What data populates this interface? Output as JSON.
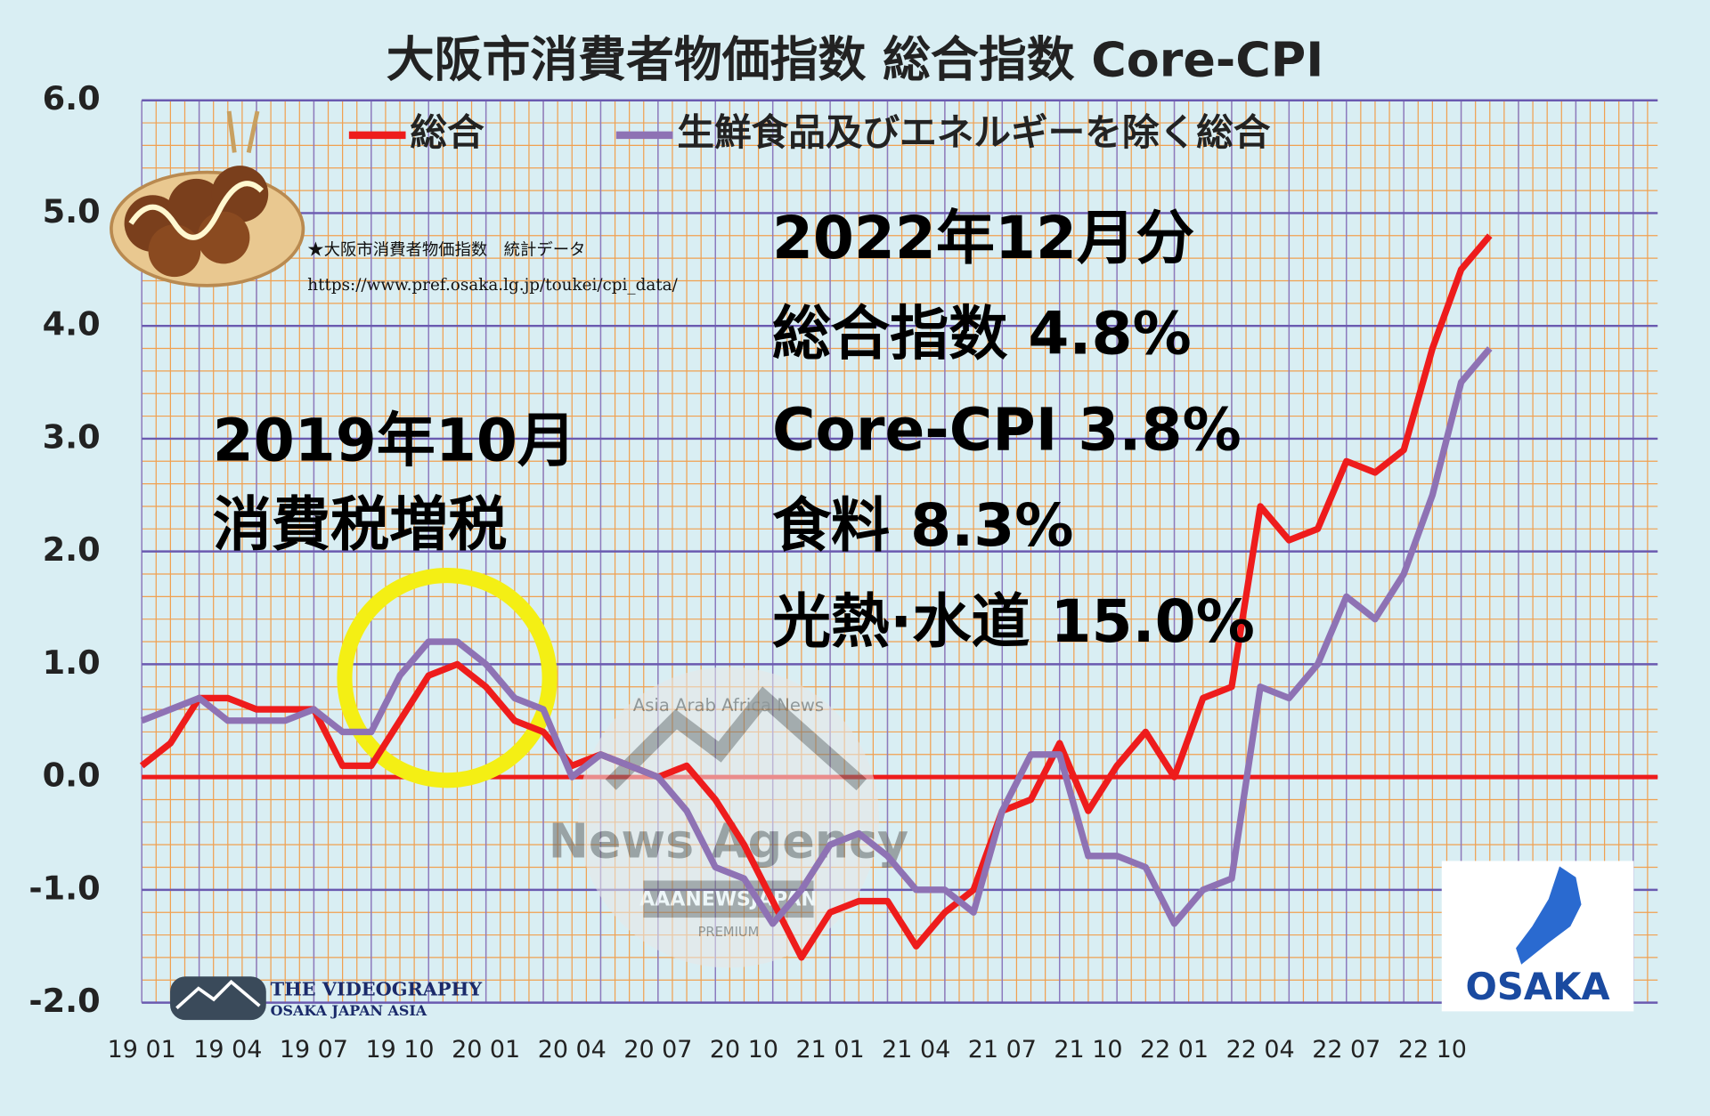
{
  "chart_data": {
    "type": "line",
    "title": "大阪市消費者物価指数 総合指数 Core-CPI",
    "source": "★大阪市消費者物価指数　統計データ",
    "source_url": "https://www.pref.osaka.lg.jp/toukei/cpi_data/",
    "annotations": [
      "2019年10月",
      "消費税増税",
      "2022年12月分",
      "総合指数 4.8%",
      "Core-CPI 3.8%",
      "食料 8.3%",
      "光熱·水道 15.0%"
    ],
    "categories": [
      "19 01",
      null,
      null,
      "19 04",
      null,
      null,
      "19 07",
      null,
      null,
      "19 10",
      null,
      null,
      "20 01",
      null,
      null,
      "20 04",
      null,
      null,
      "20 07",
      null,
      null,
      "20 10",
      null,
      null,
      "21 01",
      null,
      null,
      "21 04",
      null,
      null,
      "21 07",
      null,
      null,
      "21 10",
      null,
      null,
      "22 01",
      null,
      null,
      "22 04",
      null,
      null,
      "22 07",
      null,
      null,
      "22 10",
      null,
      null
    ],
    "series": [
      {
        "name": "総合",
        "color": "#ee1c1c",
        "values": [
          0.1,
          0.3,
          0.7,
          0.7,
          0.6,
          0.6,
          0.6,
          0.1,
          0.1,
          0.5,
          0.9,
          1.0,
          0.8,
          0.5,
          0.4,
          0.1,
          0.2,
          0.1,
          0.0,
          0.1,
          -0.2,
          -0.6,
          -1.1,
          -1.6,
          -1.2,
          -1.1,
          -1.1,
          -1.5,
          -1.2,
          -1.0,
          -0.3,
          -0.2,
          0.3,
          -0.3,
          0.1,
          0.4,
          0.0,
          0.7,
          0.8,
          2.4,
          2.1,
          2.2,
          2.8,
          2.7,
          2.9,
          3.8,
          4.5,
          4.8
        ]
      },
      {
        "name": "生鮮食品及びエネルギーを除く総合",
        "color": "#8e72b4",
        "values": [
          0.5,
          0.6,
          0.7,
          0.5,
          0.5,
          0.5,
          0.6,
          0.4,
          0.4,
          0.9,
          1.2,
          1.2,
          1.0,
          0.7,
          0.6,
          0.0,
          0.2,
          0.1,
          0.0,
          -0.3,
          -0.8,
          -0.9,
          -1.3,
          -1.0,
          -0.6,
          -0.5,
          -0.7,
          -1.0,
          -1.0,
          -1.2,
          -0.3,
          0.2,
          0.2,
          -0.7,
          -0.7,
          -0.8,
          -1.3,
          -1.0,
          -0.9,
          0.8,
          0.7,
          1.0,
          1.6,
          1.4,
          1.8,
          2.5,
          3.5,
          3.8
        ]
      }
    ],
    "ylim": [
      -2,
      6
    ],
    "yticks": [
      {
        "value": -2,
        "label": "-2.0"
      },
      {
        "value": -1,
        "label": "-1.0"
      },
      {
        "value": 0,
        "label": "0.0"
      },
      {
        "value": 1,
        "label": "1.0"
      },
      {
        "value": 2,
        "label": "2.0"
      },
      {
        "value": 3,
        "label": "3.0"
      },
      {
        "value": 4,
        "label": "4.0"
      },
      {
        "value": 5,
        "label": "5.0"
      },
      {
        "value": 6,
        "label": "6.0"
      }
    ],
    "grid": true,
    "zero_line_color": "#ee1c1c",
    "legend": "top"
  },
  "watermark": {
    "name": "News Agency",
    "ribbon": "AAANEWSJAPAN",
    "arc": "Asia Arab Africa News",
    "premium": "PREMIUM"
  },
  "logos": {
    "videography": "THE VIDEOGRAPHY",
    "videography_sub": "OSAKA JAPAN ASIA",
    "osaka": "OSAKA"
  }
}
